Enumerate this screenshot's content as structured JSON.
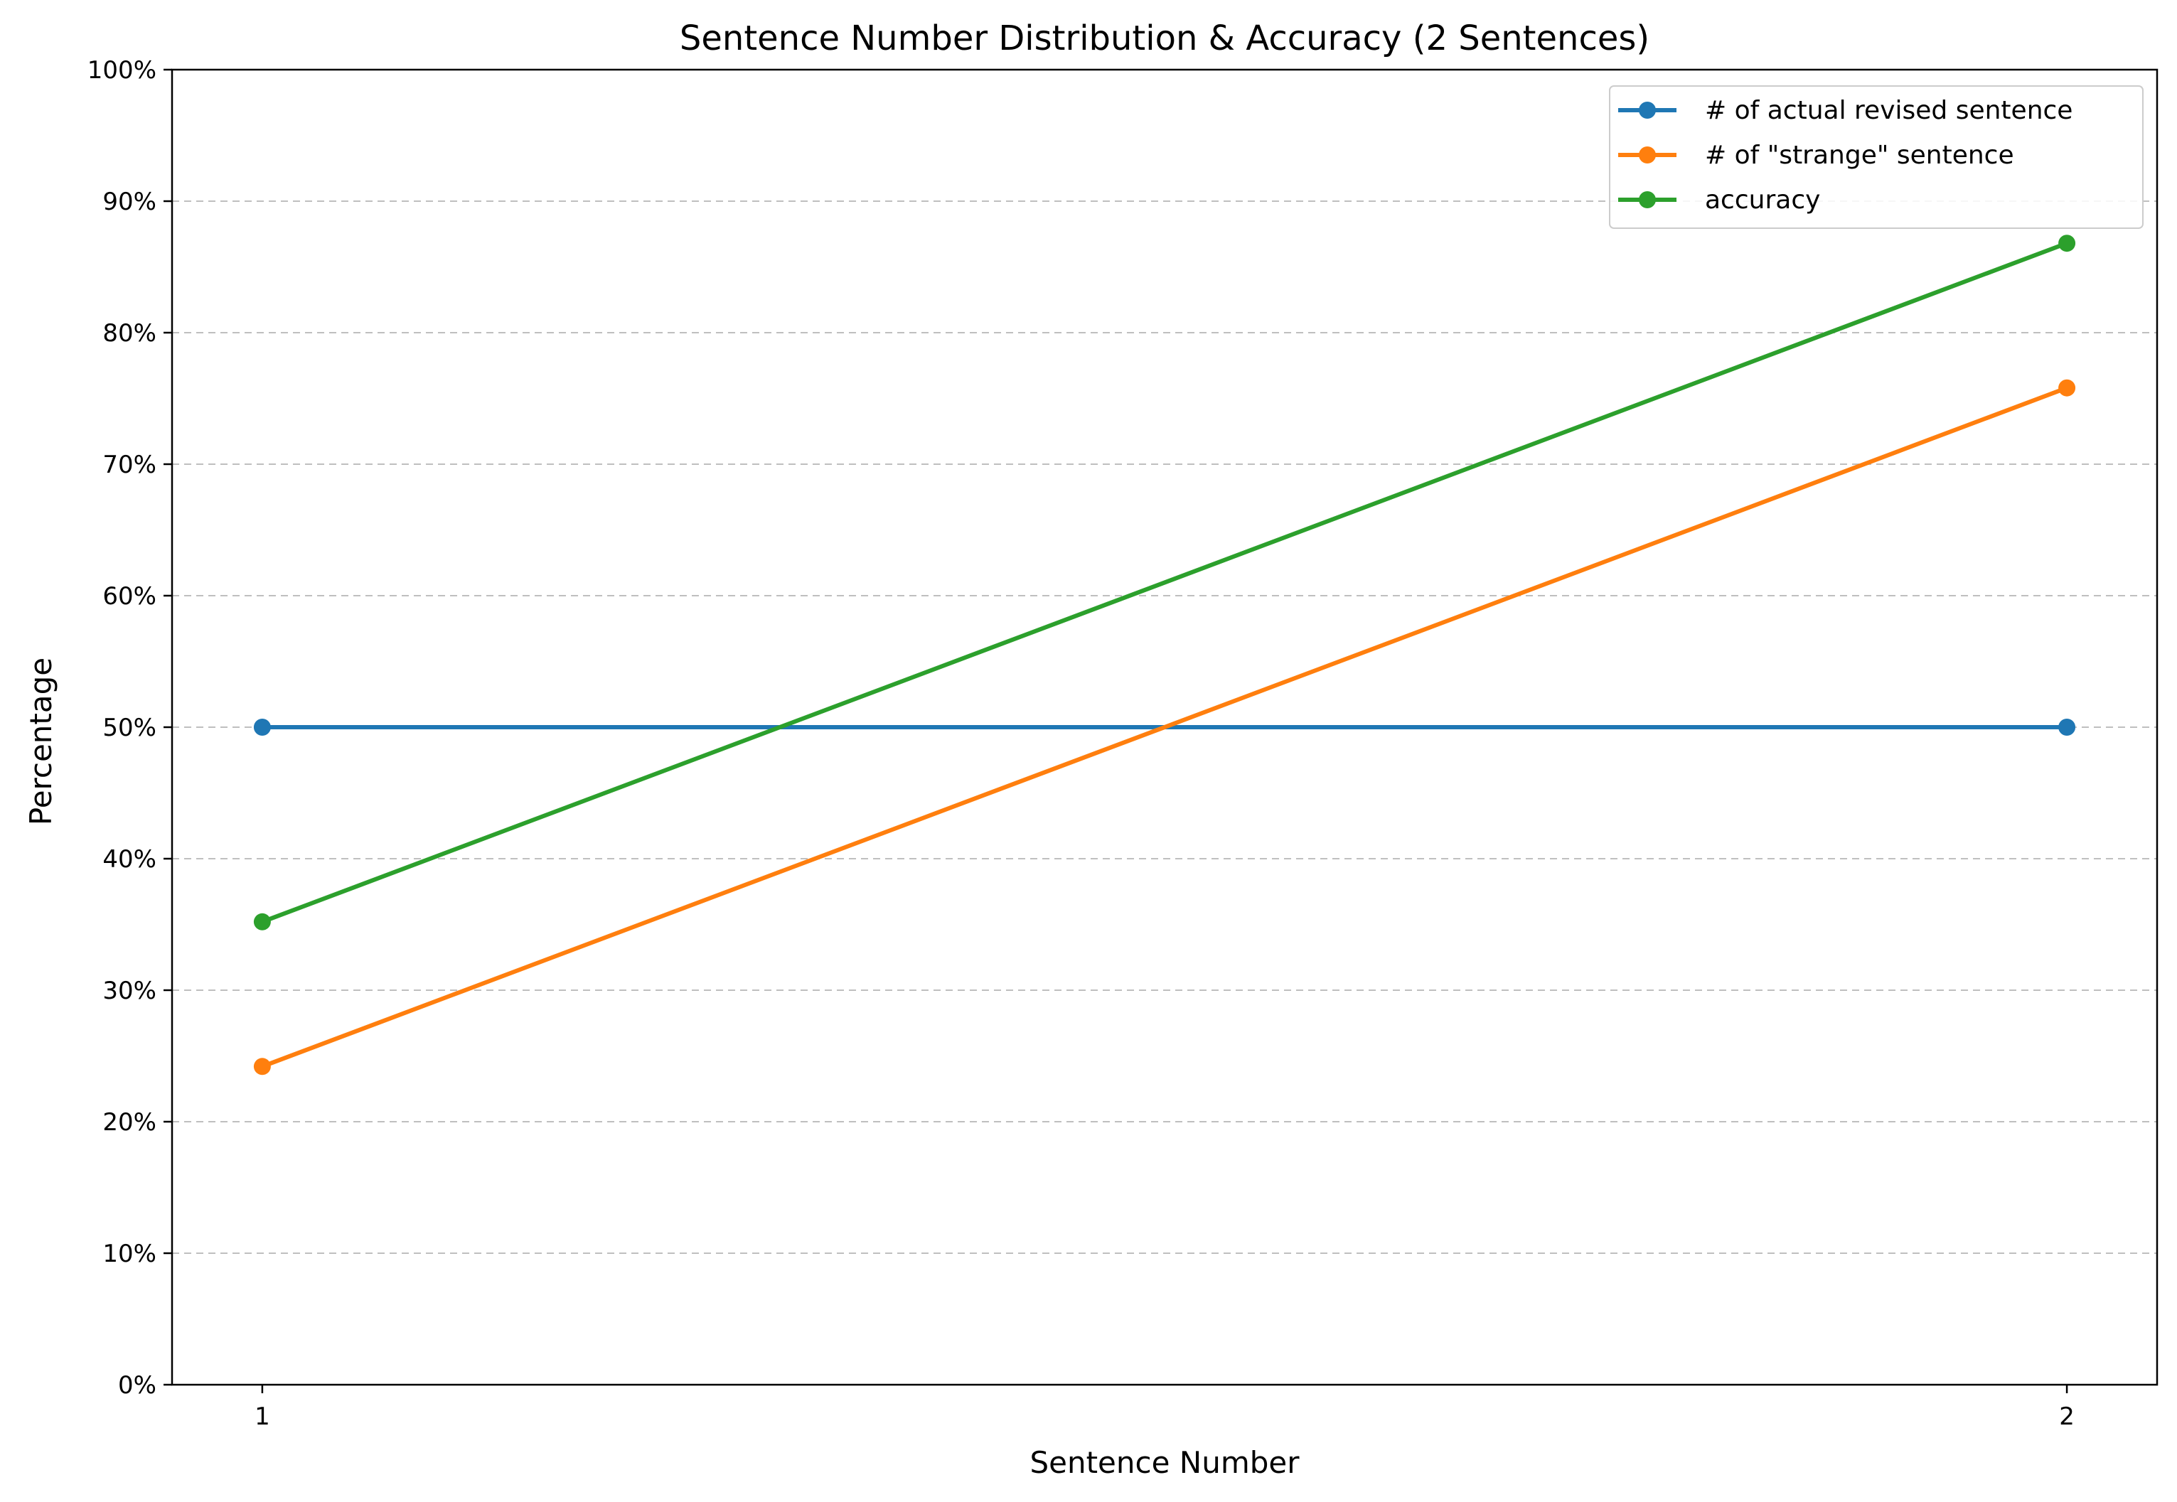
{
  "chart_data": {
    "type": "line",
    "title": "Sentence Number Distribution & Accuracy (2 Sentences)",
    "xlabel": "Sentence Number",
    "ylabel": "Percentage",
    "x": [
      1,
      2
    ],
    "x_tick_labels": [
      "1",
      "2"
    ],
    "ylim": [
      0,
      100
    ],
    "y_ticks": [
      0,
      10,
      20,
      30,
      40,
      50,
      60,
      70,
      80,
      90,
      100
    ],
    "y_tick_labels": [
      "0%",
      "10%",
      "20%",
      "30%",
      "40%",
      "50%",
      "60%",
      "70%",
      "80%",
      "90%",
      "100%"
    ],
    "grid": "horizontal dashed",
    "legend_position": "top-right",
    "series": [
      {
        "name": "# of actual revised sentence",
        "values": [
          50.0,
          50.0
        ],
        "color": "#1f77b4"
      },
      {
        "name": "# of \"strange\" sentence",
        "values": [
          24.2,
          75.8
        ],
        "color": "#ff7f0e"
      },
      {
        "name": "accuracy",
        "values": [
          35.2,
          86.8
        ],
        "color": "#2ca02c"
      }
    ]
  }
}
